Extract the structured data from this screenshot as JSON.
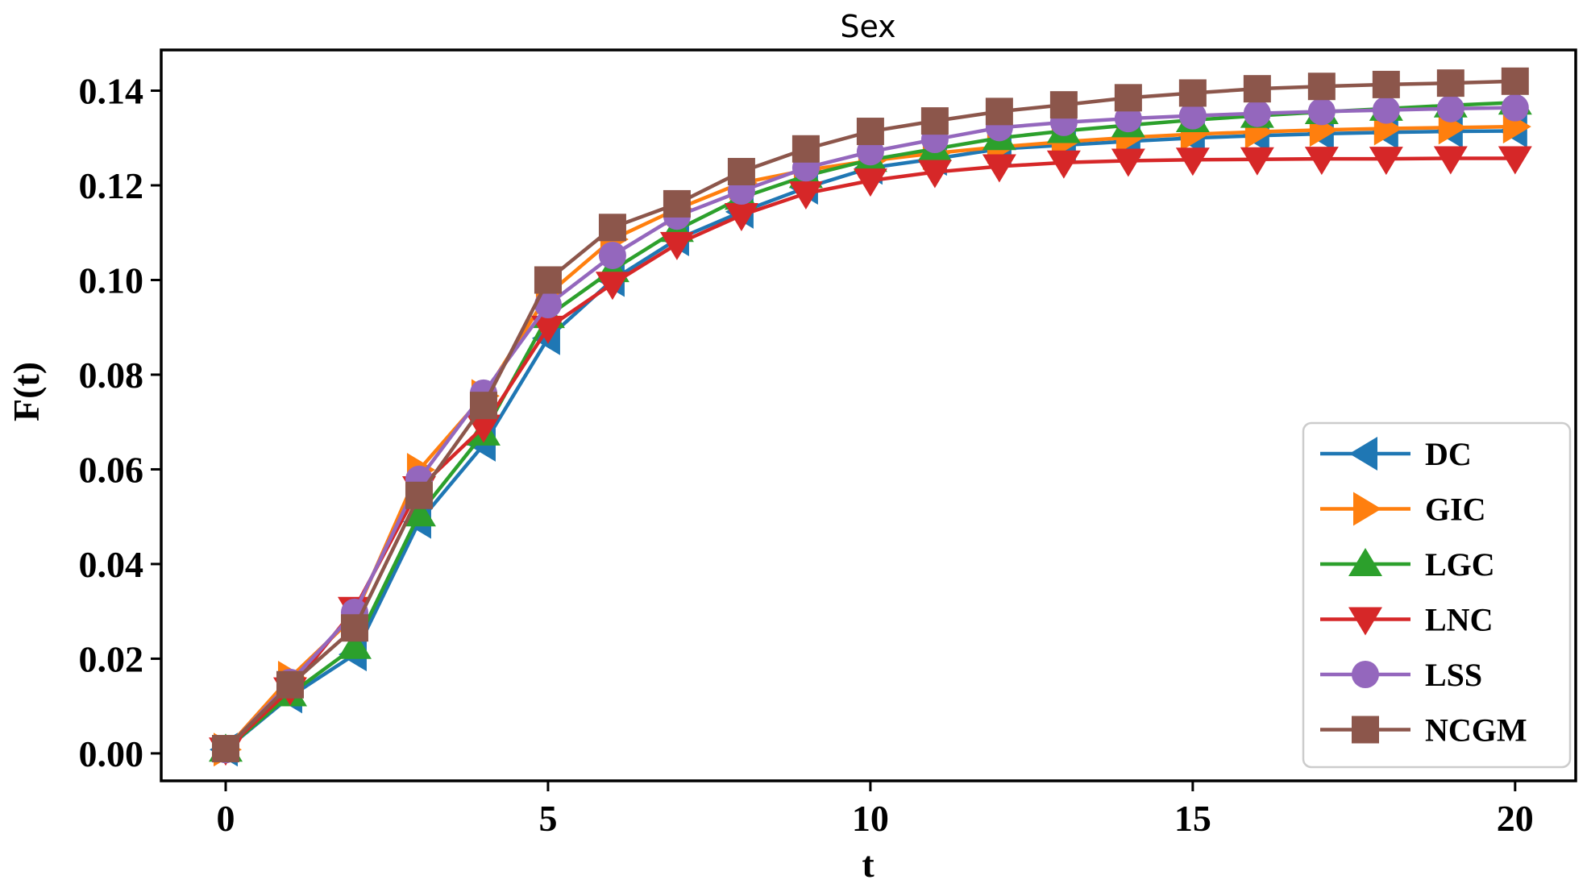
{
  "title": "Sex",
  "chart_data": {
    "type": "line",
    "title": "Sex",
    "xlabel": "t",
    "ylabel": "F(t)",
    "grid": false,
    "legend_position": "lower right",
    "x": [
      0,
      1,
      2,
      3,
      4,
      5,
      6,
      7,
      8,
      9,
      10,
      11,
      12,
      13,
      14,
      15,
      16,
      17,
      18,
      19,
      20
    ],
    "xlim": [
      -1.0,
      20.94
    ],
    "ylim": [
      -0.0058,
      0.1486
    ],
    "xticks": [
      {
        "v": 0,
        "label": "0"
      },
      {
        "v": 5,
        "label": "5"
      },
      {
        "v": 10,
        "label": "10"
      },
      {
        "v": 15,
        "label": "15"
      },
      {
        "v": 20,
        "label": "20"
      }
    ],
    "yticks": [
      {
        "v": 0.0,
        "label": "0.00"
      },
      {
        "v": 0.02,
        "label": "0.02"
      },
      {
        "v": 0.04,
        "label": "0.04"
      },
      {
        "v": 0.06,
        "label": "0.06"
      },
      {
        "v": 0.08,
        "label": "0.08"
      },
      {
        "v": 0.1,
        "label": "0.10"
      },
      {
        "v": 0.12,
        "label": "0.12"
      },
      {
        "v": 0.14,
        "label": "0.14"
      }
    ],
    "series": [
      {
        "name": "DC",
        "color": "#1f77b4",
        "marker": "left",
        "values": [
          0.0008,
          0.012,
          0.0209,
          0.0489,
          0.0652,
          0.0877,
          0.1,
          0.1086,
          0.1144,
          0.1195,
          0.1237,
          0.1256,
          0.1277,
          0.1285,
          0.1293,
          0.13,
          0.1305,
          0.1309,
          0.1312,
          0.1314,
          0.1315
        ]
      },
      {
        "name": "GIC",
        "color": "#ff7f0e",
        "marker": "right",
        "values": [
          0.0008,
          0.016,
          0.029,
          0.0599,
          0.0755,
          0.097,
          0.1086,
          0.115,
          0.1205,
          0.1232,
          0.1252,
          0.1268,
          0.1281,
          0.1292,
          0.1301,
          0.1308,
          0.1313,
          0.1317,
          0.132,
          0.1322,
          0.1324
        ]
      },
      {
        "name": "LGC",
        "color": "#2ca02c",
        "marker": "up",
        "values": [
          0.0008,
          0.0125,
          0.0225,
          0.0505,
          0.0676,
          0.0924,
          0.1021,
          0.1106,
          0.1174,
          0.122,
          0.1254,
          0.1277,
          0.13,
          0.1315,
          0.1327,
          0.1338,
          0.1347,
          0.1355,
          0.1362,
          0.1369,
          0.1375
        ]
      },
      {
        "name": "LNC",
        "color": "#d62728",
        "marker": "down",
        "values": [
          0.0008,
          0.0135,
          0.0305,
          0.056,
          0.069,
          0.0899,
          0.0992,
          0.1076,
          0.1137,
          0.1183,
          0.121,
          0.1228,
          0.124,
          0.1248,
          0.1252,
          0.1254,
          0.1255,
          0.1256,
          0.1256,
          0.1257,
          0.1257
        ]
      },
      {
        "name": "LSS",
        "color": "#9467bd",
        "marker": "circle",
        "values": [
          0.0008,
          0.015,
          0.0298,
          0.0579,
          0.0761,
          0.0948,
          0.1052,
          0.1135,
          0.1188,
          0.1237,
          0.1271,
          0.1297,
          0.1322,
          0.1333,
          0.1341,
          0.1347,
          0.1352,
          0.1356,
          0.1359,
          0.1362,
          0.1364
        ]
      },
      {
        "name": "NCGM",
        "color": "#8c564b",
        "marker": "square",
        "values": [
          0.001,
          0.0145,
          0.0265,
          0.0545,
          0.0735,
          0.1,
          0.1111,
          0.1161,
          0.1229,
          0.1277,
          0.1314,
          0.1336,
          0.1356,
          0.137,
          0.1385,
          0.1395,
          0.1404,
          0.1409,
          0.1413,
          0.1416,
          0.142
        ]
      }
    ]
  }
}
